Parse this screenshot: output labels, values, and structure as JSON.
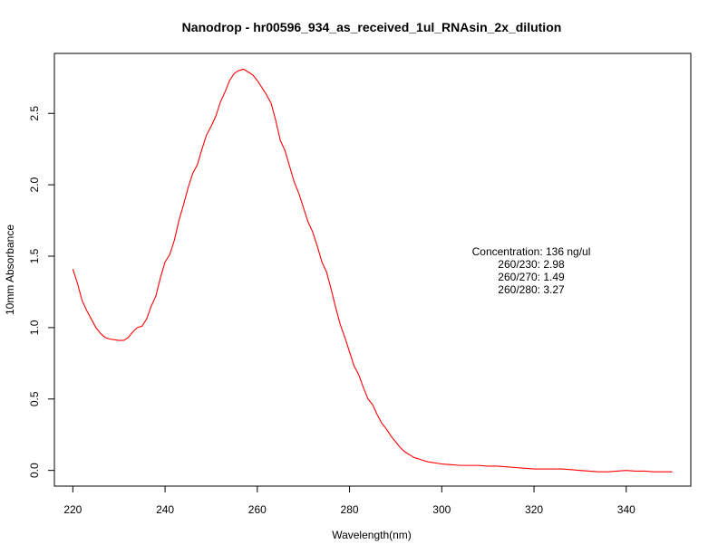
{
  "chart_data": {
    "type": "line",
    "title": "Nanodrop - hr00596_934_as_received_1ul_RNAsin_2x_dilution",
    "xlabel": "Wavelength(nm)",
    "ylabel": "10mm Absorbance",
    "xlim": [
      216,
      354
    ],
    "ylim": [
      -0.11,
      2.92
    ],
    "xticks": [
      220,
      240,
      260,
      280,
      300,
      320,
      340
    ],
    "yticks": [
      0.0,
      0.5,
      1.0,
      1.5,
      2.0,
      2.5
    ],
    "ytick_labels": [
      "0.0",
      "0.5",
      "1.0",
      "1.5",
      "2.0",
      "2.5"
    ],
    "grid": false,
    "series": [
      {
        "color": "#ff0000",
        "x": [
          220,
          221,
          222,
          223,
          224,
          225,
          226,
          227,
          228,
          229,
          230,
          231,
          232,
          233,
          234,
          235,
          236,
          237,
          238,
          239,
          240,
          241,
          242,
          243,
          244,
          245,
          246,
          247,
          248,
          249,
          250,
          251,
          252,
          253,
          254,
          255,
          256,
          257,
          258,
          259,
          260,
          261,
          262,
          263,
          264,
          265,
          266,
          267,
          268,
          269,
          270,
          271,
          272,
          273,
          274,
          275,
          276,
          277,
          278,
          279,
          280,
          281,
          282,
          283,
          284,
          285,
          286,
          287,
          288,
          289,
          290,
          291,
          292,
          293,
          294,
          295,
          296,
          297,
          298,
          299,
          300,
          302,
          304,
          306,
          308,
          310,
          312,
          314,
          316,
          318,
          320,
          322,
          324,
          326,
          328,
          330,
          332,
          334,
          336,
          338,
          340,
          342,
          344,
          346,
          348,
          350
        ],
        "y": [
          1.41,
          1.31,
          1.19,
          1.12,
          1.06,
          1.0,
          0.96,
          0.93,
          0.92,
          0.915,
          0.91,
          0.91,
          0.93,
          0.97,
          1.0,
          1.01,
          1.06,
          1.15,
          1.22,
          1.35,
          1.46,
          1.51,
          1.61,
          1.75,
          1.86,
          1.98,
          2.08,
          2.14,
          2.25,
          2.35,
          2.41,
          2.48,
          2.58,
          2.65,
          2.73,
          2.78,
          2.8,
          2.81,
          2.79,
          2.77,
          2.73,
          2.68,
          2.63,
          2.57,
          2.45,
          2.31,
          2.24,
          2.13,
          2.02,
          1.94,
          1.84,
          1.74,
          1.67,
          1.57,
          1.46,
          1.39,
          1.27,
          1.14,
          1.02,
          0.93,
          0.83,
          0.73,
          0.67,
          0.58,
          0.5,
          0.46,
          0.39,
          0.33,
          0.29,
          0.24,
          0.2,
          0.16,
          0.13,
          0.11,
          0.09,
          0.08,
          0.07,
          0.06,
          0.055,
          0.05,
          0.045,
          0.04,
          0.035,
          0.035,
          0.035,
          0.03,
          0.03,
          0.025,
          0.02,
          0.015,
          0.01,
          0.01,
          0.01,
          0.01,
          0.005,
          0.0,
          -0.005,
          -0.01,
          -0.01,
          -0.005,
          0.0,
          -0.005,
          -0.005,
          -0.01,
          -0.01,
          -0.01
        ]
      }
    ],
    "annotations": [
      "Concentration: 136 ng/ul",
      "260/230: 2.98",
      "260/270: 1.49",
      "260/280: 3.27"
    ]
  }
}
